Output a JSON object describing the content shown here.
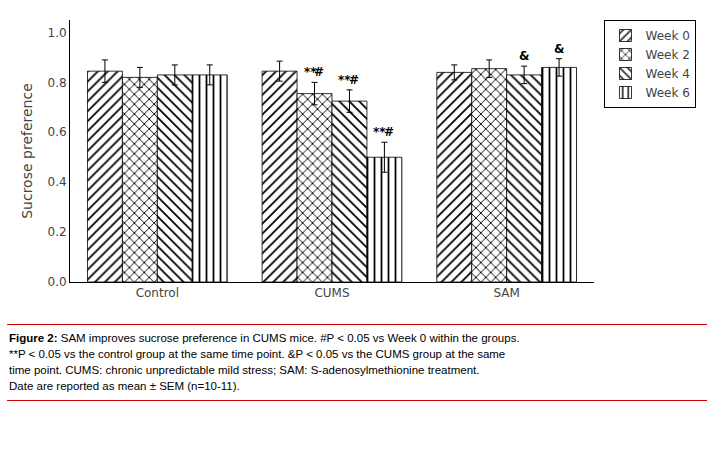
{
  "chart_data": {
    "type": "bar",
    "categories": [
      "Control",
      "CUMS",
      "SAM"
    ],
    "series": [
      {
        "name": "Week 0",
        "color": "white",
        "marker": "diagonal",
        "values": [
          0.845,
          0.845,
          0.84
        ],
        "errors": [
          0.045,
          0.04,
          0.03
        ]
      },
      {
        "name": "Week 2",
        "color": "white",
        "marker": "crosshatch",
        "values": [
          0.82,
          0.755,
          0.855
        ],
        "errors": [
          0.04,
          0.045,
          0.035
        ]
      },
      {
        "name": "Week 4",
        "color": "white",
        "marker": "backdiagonal",
        "values": [
          0.83,
          0.725,
          0.83
        ],
        "errors": [
          0.04,
          0.045,
          0.035
        ]
      },
      {
        "name": "Week 6",
        "color": "white",
        "marker": "vertical",
        "values": [
          0.83,
          0.5,
          0.86
        ],
        "errors": [
          0.04,
          0.06,
          0.035
        ]
      }
    ],
    "ylabel": "Sucrose preference",
    "ylim": [
      0.0,
      1.05
    ],
    "yticks": [
      {
        "value": 0.0,
        "label": "0.0"
      },
      0.2,
      0.4,
      0.6,
      0.8,
      {
        "value": 1.0,
        "label": "1.0"
      }
    ],
    "grid": false,
    "legend": "right",
    "annotations": [
      {
        "text": "**",
        "category": "CUMS",
        "series": "Week 2"
      },
      {
        "text": "#",
        "category": "CUMS",
        "series": "Week 2"
      },
      {
        "text": "**",
        "category": "CUMS",
        "series": "Week 4"
      },
      {
        "text": "#",
        "category": "CUMS",
        "series": "Week 4"
      },
      {
        "text": "**",
        "category": "CUMS",
        "series": "Week 6"
      },
      {
        "text": "#",
        "category": "CUMS",
        "series": "Week 6"
      },
      {
        "text": "&",
        "category": "SAM",
        "series": "Week 4"
      },
      {
        "text": "&",
        "category": "SAM",
        "series": "Week 6"
      }
    ],
    "caption": {
      "label": "Figure 2:",
      "text": " SAM improves sucrose preference in CUMS mice. #P < 0.05 vs Week 0 within the groups.\n**P < 0.05 vs the control group at the same time point. &P < 0.05 vs the CUMS group at the same\ntime point. CUMS: chronic unpredictable mild stress; SAM: S-adenosylmethionine treatment.\nDate are reported as mean ± SEM (n=10-11)."
    }
  }
}
